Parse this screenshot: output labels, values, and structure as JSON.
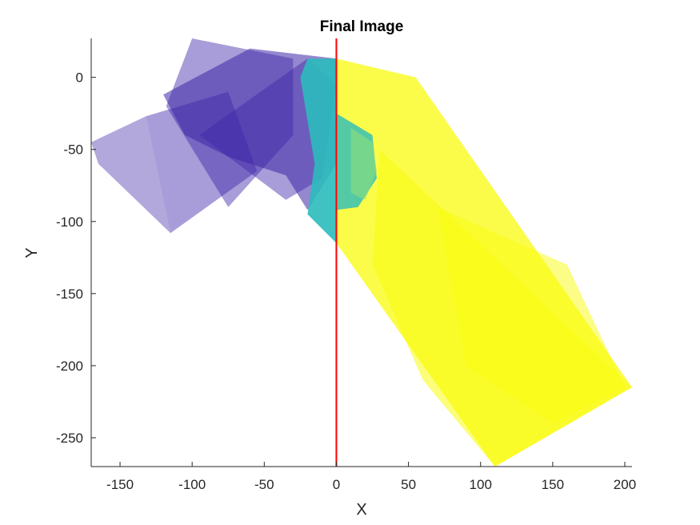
{
  "chart_data": {
    "type": "scatter",
    "title": "Final Image",
    "xlabel": "X",
    "ylabel": "Y",
    "xlim": [
      -170,
      205
    ],
    "ylim": [
      -270,
      27
    ],
    "xticks": [
      -150,
      -100,
      -50,
      0,
      50,
      100,
      150,
      200
    ],
    "yticks": [
      0,
      -50,
      -100,
      -150,
      -200,
      -250
    ],
    "xtick_labels": [
      "-150",
      "-100",
      "-50",
      "0",
      "50",
      "100",
      "150",
      "200"
    ],
    "ytick_labels": [
      "0",
      "-50",
      "-100",
      "-150",
      "-200",
      "-250"
    ],
    "grid": false,
    "legend": "none",
    "reference_line": {
      "orientation": "vertical",
      "x": 0,
      "color": "#ff0000"
    },
    "colormap": [
      "#3e26a8",
      "#2bbbbb",
      "#f9fb0e"
    ],
    "point_clouds": [
      {
        "color": "#3e26a8",
        "opacity": 0.45,
        "polygon": [
          [
            -100,
            27
          ],
          [
            -30,
            13
          ],
          [
            -30,
            -40
          ],
          [
            -75,
            -90
          ],
          [
            -118,
            -20
          ]
        ]
      },
      {
        "color": "#3e26a8",
        "opacity": 0.45,
        "polygon": [
          [
            -132,
            -27
          ],
          [
            -75,
            -10
          ],
          [
            -55,
            -65
          ],
          [
            -115,
            -108
          ]
        ]
      },
      {
        "color": "#3e26a8",
        "opacity": 0.4,
        "polygon": [
          [
            -170,
            -45
          ],
          [
            -132,
            -27
          ],
          [
            -115,
            -108
          ],
          [
            -165,
            -60
          ]
        ]
      },
      {
        "color": "#3e26a8",
        "opacity": 0.45,
        "polygon": [
          [
            -95,
            -40
          ],
          [
            -20,
            13
          ],
          [
            0,
            -5
          ],
          [
            -10,
            -70
          ],
          [
            -35,
            -85
          ]
        ]
      },
      {
        "color": "#3e26a8",
        "opacity": 0.55,
        "polygon": [
          [
            -120,
            -12
          ],
          [
            -60,
            20
          ],
          [
            0,
            13
          ],
          [
            0,
            -60
          ],
          [
            -20,
            -92
          ],
          [
            -35,
            -68
          ],
          [
            -75,
            -55
          ],
          [
            -105,
            -40
          ]
        ]
      },
      {
        "color": "#2bbbbb",
        "opacity": 0.9,
        "polygon": [
          [
            -20,
            13
          ],
          [
            0,
            13
          ],
          [
            0,
            -115
          ],
          [
            -20,
            -95
          ],
          [
            -15,
            -60
          ],
          [
            -25,
            0
          ]
        ]
      },
      {
        "color": "#f9fb0e",
        "opacity": 0.75,
        "polygon": [
          [
            0,
            13
          ],
          [
            55,
            0
          ],
          [
            205,
            -215
          ],
          [
            110,
            -270
          ],
          [
            0,
            -115
          ]
        ]
      },
      {
        "color": "#f9fb0e",
        "opacity": 0.55,
        "polygon": [
          [
            30,
            -50
          ],
          [
            205,
            -215
          ],
          [
            110,
            -270
          ],
          [
            60,
            -210
          ],
          [
            25,
            -130
          ]
        ]
      },
      {
        "color": "#f9fb0e",
        "opacity": 0.5,
        "polygon": [
          [
            70,
            -90
          ],
          [
            160,
            -130
          ],
          [
            200,
            -215
          ],
          [
            150,
            -240
          ],
          [
            90,
            -200
          ]
        ]
      },
      {
        "color": "#2bbbbb",
        "opacity": 0.8,
        "polygon": [
          [
            0,
            -25
          ],
          [
            25,
            -40
          ],
          [
            28,
            -70
          ],
          [
            15,
            -90
          ],
          [
            0,
            -92
          ]
        ]
      },
      {
        "color": "#8ee07a",
        "opacity": 0.6,
        "polygon": [
          [
            10,
            -35
          ],
          [
            25,
            -45
          ],
          [
            28,
            -65
          ],
          [
            20,
            -85
          ],
          [
            10,
            -80
          ]
        ]
      }
    ]
  }
}
